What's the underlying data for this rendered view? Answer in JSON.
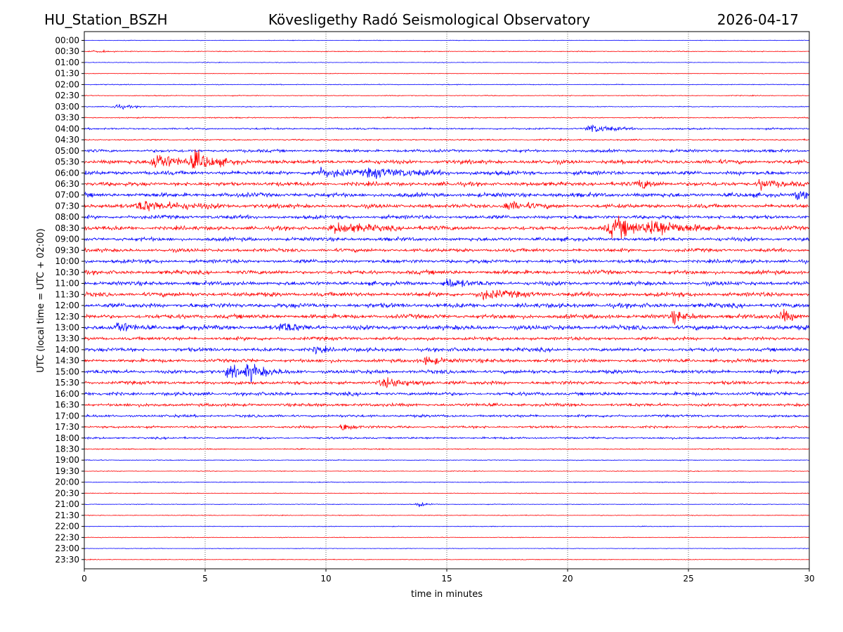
{
  "header": {
    "station": "HU_Station_BSZH",
    "observatory": "Kövesligethy Radó Seismological Observatory",
    "date": "2026-04-17"
  },
  "chart_data": {
    "type": "line",
    "title": "Kövesligethy Radó Seismological Observatory",
    "xlabel": "time in minutes",
    "ylabel": "UTC (local time = UTC + 02:00)",
    "xlim": [
      0,
      30
    ],
    "xticks": [
      "0",
      "5",
      "10",
      "15",
      "20",
      "25",
      "30"
    ],
    "grid": "vertical dotted at x ticks",
    "series_colors": [
      "#0000ff",
      "#ff0000"
    ],
    "row_labels": [
      "00:00",
      "00:30",
      "01:00",
      "01:30",
      "02:00",
      "02:30",
      "03:00",
      "03:30",
      "04:00",
      "04:30",
      "05:00",
      "05:30",
      "06:00",
      "06:30",
      "07:00",
      "07:30",
      "08:00",
      "08:30",
      "09:00",
      "09:30",
      "10:00",
      "10:30",
      "11:00",
      "11:30",
      "12:00",
      "12:30",
      "13:00",
      "13:30",
      "14:00",
      "14:30",
      "15:00",
      "15:30",
      "16:00",
      "16:30",
      "17:00",
      "17:30",
      "18:00",
      "18:30",
      "19:00",
      "19:30",
      "20:00",
      "20:30",
      "21:00",
      "21:30",
      "22:00",
      "22:30",
      "23:00",
      "23:30"
    ],
    "noise_levels": [
      0.4,
      0.6,
      0.4,
      0.4,
      0.6,
      0.6,
      0.6,
      0.8,
      1.2,
      1.0,
      2.0,
      2.8,
      2.8,
      2.8,
      3.0,
      2.8,
      2.6,
      2.8,
      2.6,
      2.4,
      2.6,
      2.8,
      2.8,
      3.0,
      3.2,
      3.0,
      3.2,
      2.4,
      2.6,
      2.4,
      2.6,
      2.4,
      2.4,
      2.2,
      1.8,
      1.6,
      1.4,
      0.8,
      0.6,
      0.5,
      0.6,
      0.5,
      0.5,
      0.5,
      0.5,
      0.5,
      0.4,
      0.5
    ],
    "events": [
      {
        "row": 1,
        "minute": 0.5,
        "amp": 2,
        "dur": 0.8
      },
      {
        "row": 6,
        "minute": 1.3,
        "amp": 4,
        "dur": 1.0
      },
      {
        "row": 8,
        "minute": 21.0,
        "amp": 7,
        "dur": 1.2
      },
      {
        "row": 11,
        "minute": 3.0,
        "amp": 16,
        "dur": 1.2
      },
      {
        "row": 11,
        "minute": 4.6,
        "amp": 14,
        "dur": 1.0
      },
      {
        "row": 12,
        "minute": 12.0,
        "amp": 8,
        "dur": 2.0
      },
      {
        "row": 12,
        "minute": 9.8,
        "amp": 7,
        "dur": 1.5
      },
      {
        "row": 13,
        "minute": 23.0,
        "amp": 10,
        "dur": 0.6
      },
      {
        "row": 13,
        "minute": 28.0,
        "amp": 9,
        "dur": 0.8
      },
      {
        "row": 14,
        "minute": 29.5,
        "amp": 9,
        "dur": 0.6
      },
      {
        "row": 15,
        "minute": 2.5,
        "amp": 9,
        "dur": 2.0
      },
      {
        "row": 15,
        "minute": 17.5,
        "amp": 8,
        "dur": 1.0
      },
      {
        "row": 17,
        "minute": 22.0,
        "amp": 16,
        "dur": 1.8
      },
      {
        "row": 17,
        "minute": 23.6,
        "amp": 14,
        "dur": 1.2
      },
      {
        "row": 17,
        "minute": 10.5,
        "amp": 8,
        "dur": 2.0
      },
      {
        "row": 22,
        "minute": 15.0,
        "amp": 9,
        "dur": 0.8
      },
      {
        "row": 23,
        "minute": 16.5,
        "amp": 7,
        "dur": 1.5
      },
      {
        "row": 25,
        "minute": 24.4,
        "amp": 10,
        "dur": 0.6
      },
      {
        "row": 25,
        "minute": 28.9,
        "amp": 11,
        "dur": 0.6
      },
      {
        "row": 26,
        "minute": 1.4,
        "amp": 10,
        "dur": 0.6
      },
      {
        "row": 26,
        "minute": 8.2,
        "amp": 8,
        "dur": 0.8
      },
      {
        "row": 28,
        "minute": 9.6,
        "amp": 8,
        "dur": 0.5
      },
      {
        "row": 29,
        "minute": 14.2,
        "amp": 7,
        "dur": 1.0
      },
      {
        "row": 30,
        "minute": 6.0,
        "amp": 12,
        "dur": 0.8
      },
      {
        "row": 30,
        "minute": 6.8,
        "amp": 13,
        "dur": 0.8
      },
      {
        "row": 31,
        "minute": 12.5,
        "amp": 7,
        "dur": 1.5
      },
      {
        "row": 35,
        "minute": 10.7,
        "amp": 9,
        "dur": 0.5
      },
      {
        "row": 42,
        "minute": 13.8,
        "amp": 5,
        "dur": 0.4
      }
    ]
  }
}
